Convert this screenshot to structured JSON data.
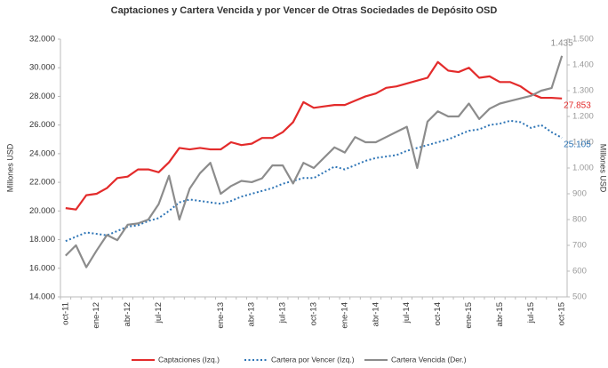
{
  "chart_data": {
    "type": "line",
    "title": "Captaciones y Cartera Vencida y por Vencer de Otras Sociedades de Depósito OSD",
    "ylabel": "Millones USD",
    "y2label": "Millones USD",
    "categories": [
      "oct-11",
      null,
      null,
      "ene-12",
      null,
      null,
      "abr-12",
      null,
      null,
      "jul-12",
      null,
      null,
      null,
      null,
      null,
      "ene-13",
      null,
      null,
      "abr-13",
      null,
      null,
      "jul-13",
      null,
      null,
      "oct-13",
      null,
      null,
      "ene-14",
      null,
      null,
      "abr-14",
      null,
      null,
      "jul-14",
      null,
      null,
      "oct-14",
      null,
      null,
      "ene-15",
      null,
      null,
      "abr-15",
      null,
      null,
      "jul-15",
      null,
      null,
      "oct-15"
    ],
    "ylim": [
      14000,
      32000
    ],
    "yticks": [
      {
        "value": 14000,
        "label": "14.000"
      },
      {
        "value": 16000,
        "label": "16.000"
      },
      {
        "value": 18000,
        "label": "18.000"
      },
      {
        "value": 20000,
        "label": "20.000"
      },
      {
        "value": 22000,
        "label": "22.000"
      },
      {
        "value": 24000,
        "label": "24.000"
      },
      {
        "value": 26000,
        "label": "26.000"
      },
      {
        "value": 28000,
        "label": "28.000"
      },
      {
        "value": 30000,
        "label": "30.000"
      },
      {
        "value": 32000,
        "label": "32.000"
      }
    ],
    "y2lim": [
      500,
      1500
    ],
    "y2ticks": [
      500,
      600,
      700,
      800,
      900,
      {
        "value": 1000,
        "label": "1.000"
      },
      {
        "value": 1100,
        "label": "1.100"
      },
      {
        "value": 1200,
        "label": "1.200"
      },
      {
        "value": 1300,
        "label": "1.300"
      },
      {
        "value": 1400,
        "label": "1.400"
      },
      {
        "value": 1500,
        "label": "1.500"
      }
    ],
    "grid": false,
    "legend": "bottom",
    "series": [
      {
        "name": "Captaciones (Izq.)",
        "color": "#e32b2b",
        "dash": "solid",
        "values": [
          20200,
          20100,
          21100,
          21200,
          21600,
          22300,
          22400,
          22900,
          22900,
          22700,
          23400,
          24400,
          24300,
          24400,
          24300,
          24300,
          24800,
          24600,
          24700,
          25100,
          25100,
          25500,
          26200,
          27600,
          27200,
          27300,
          27400,
          27400,
          27700,
          28000,
          28200,
          28600,
          28700,
          28900,
          29100,
          29300,
          30400,
          29800,
          29700,
          30000,
          29300,
          29400,
          29000,
          29000,
          28700,
          28200,
          27900,
          27900,
          27853
        ],
        "value_labels": [
          null,
          null,
          null,
          null,
          null,
          null,
          null,
          null,
          null,
          null,
          null,
          null,
          null,
          null,
          null,
          null,
          null,
          null,
          null,
          null,
          null,
          null,
          null,
          null,
          null,
          null,
          null,
          null,
          null,
          null,
          null,
          null,
          null,
          null,
          null,
          null,
          null,
          null,
          null,
          null,
          null,
          null,
          null,
          null,
          null,
          null,
          null,
          null,
          "27.853"
        ]
      },
      {
        "name": "Cartera por Vencer (Izq.)",
        "color": "#2e75b6",
        "dash": "dotted",
        "values": [
          17900,
          18200,
          18500,
          18400,
          18300,
          18600,
          18900,
          19000,
          19300,
          19500,
          20000,
          20600,
          20800,
          20700,
          20600,
          20500,
          20700,
          21000,
          21200,
          21400,
          21600,
          21900,
          22100,
          22300,
          22300,
          22700,
          23100,
          22900,
          23200,
          23500,
          23700,
          23800,
          23900,
          24200,
          24400,
          24600,
          24800,
          25000,
          25300,
          25600,
          25700,
          26000,
          26100,
          26300,
          26200,
          25800,
          26000,
          25500,
          25105
        ],
        "value_labels": [
          null,
          null,
          null,
          null,
          null,
          null,
          null,
          null,
          null,
          null,
          null,
          null,
          null,
          null,
          null,
          null,
          null,
          null,
          null,
          null,
          null,
          null,
          null,
          null,
          null,
          null,
          null,
          null,
          null,
          null,
          null,
          null,
          null,
          null,
          null,
          null,
          null,
          null,
          null,
          null,
          null,
          null,
          null,
          null,
          null,
          null,
          null,
          null,
          "25.105"
        ]
      },
      {
        "name": "Cartera Vencida (Der.)",
        "color": "#8c8c8c",
        "dash": "solid",
        "axis": "y2",
        "values": [
          660,
          700,
          615,
          680,
          740,
          720,
          780,
          785,
          800,
          860,
          970,
          800,
          920,
          980,
          1020,
          900,
          930,
          950,
          945,
          960,
          1010,
          1010,
          940,
          1020,
          1000,
          1040,
          1080,
          1060,
          1120,
          1100,
          1100,
          1120,
          1140,
          1160,
          1000,
          1180,
          1220,
          1200,
          1200,
          1250,
          1190,
          1230,
          1250,
          1260,
          1270,
          1280,
          1300,
          1310,
          1435
        ],
        "value_labels": [
          null,
          null,
          null,
          null,
          null,
          null,
          null,
          null,
          null,
          null,
          null,
          null,
          null,
          null,
          null,
          null,
          null,
          null,
          null,
          null,
          null,
          null,
          null,
          null,
          null,
          null,
          null,
          null,
          null,
          null,
          null,
          null,
          null,
          null,
          null,
          null,
          null,
          null,
          null,
          null,
          null,
          null,
          null,
          null,
          null,
          null,
          null,
          null,
          "1.435"
        ]
      }
    ]
  }
}
